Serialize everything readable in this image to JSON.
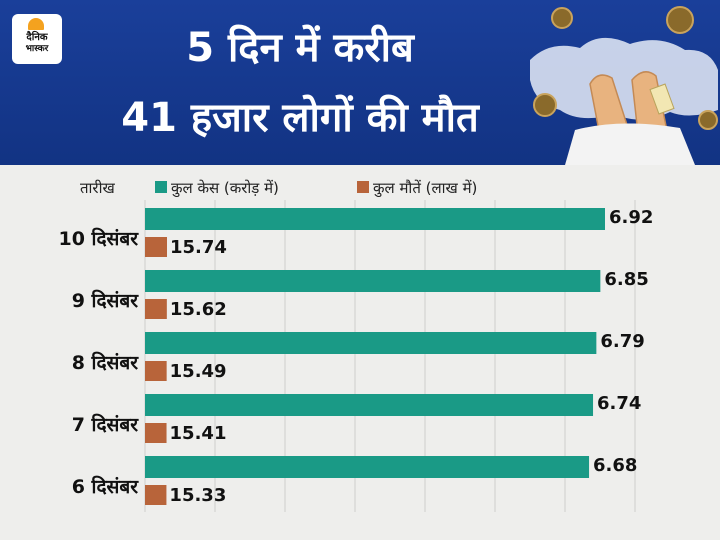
{
  "header": {
    "logo_text_1": "दैनिक",
    "logo_text_2": "भास्कर",
    "title_line_1": "5 दिन में करीब",
    "title_line_2": "41 हजार लोगों की मौत"
  },
  "colors": {
    "header_bg": "#163a8f",
    "cases": "#1a9a86",
    "deaths": "#b8643a",
    "logo_sun": "#f4a21f"
  },
  "chart_data": {
    "type": "bar",
    "orientation": "horizontal",
    "category_header": "तारीख",
    "categories": [
      "10 दिसंबर",
      "9 दिसंबर",
      "8 दिसंबर",
      "7 दिसंबर",
      "6 दिसंबर"
    ],
    "series": [
      {
        "name": "कुल केस (करोड़ में)",
        "values": [
          6.92,
          6.85,
          6.79,
          6.74,
          6.68
        ],
        "labels": [
          "6.92",
          "6.85",
          "6.79",
          "6.74",
          "6.68"
        ]
      },
      {
        "name": "कुल मौतें (लाख में)",
        "values": [
          15.74,
          15.62,
          15.49,
          15.41,
          15.33
        ],
        "labels": [
          "15.74",
          "15.62",
          "15.49",
          "15.41",
          "15.33"
        ]
      }
    ],
    "grid": true,
    "legend": "top"
  }
}
